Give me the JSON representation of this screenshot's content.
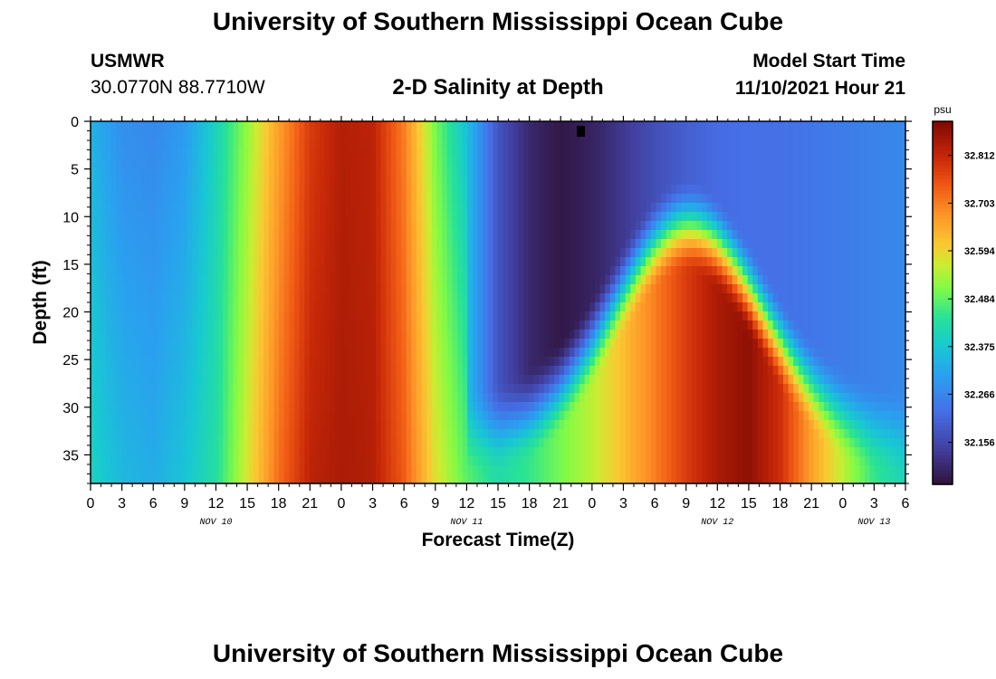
{
  "header": {
    "title": "University of Southern Mississippi Ocean Cube",
    "station": "USMWR",
    "coords": "30.0770N  88.7710W",
    "subtitle": "2-D Salinity at Depth",
    "start_label": "Model Start Time",
    "start_value": "11/10/2021 Hour 21"
  },
  "footer": {
    "title": "University of Southern Mississippi Ocean Cube"
  },
  "chart_data": {
    "type": "heatmap",
    "title": "2-D Salinity at Depth",
    "xlabel": "Forecast Time(Z)",
    "ylabel": "Depth (ft)",
    "x_unit": "hours from Nov 10 00Z",
    "xlim": [
      0,
      78
    ],
    "ylim": [
      0,
      38
    ],
    "y_inverted": true,
    "x_tick_labels": [
      "0",
      "3",
      "6",
      "9",
      "12",
      "15",
      "18",
      "21",
      "0",
      "3",
      "6",
      "9",
      "12",
      "15",
      "18",
      "21",
      "0",
      "3",
      "6",
      "9",
      "12",
      "15",
      "18",
      "21",
      "0",
      "3",
      "6"
    ],
    "x_tick_step_hours": 3,
    "date_labels": [
      {
        "label": "NOV 10",
        "hour": 12
      },
      {
        "label": "NOV 11",
        "hour": 36
      },
      {
        "label": "NOV 12",
        "hour": 60
      },
      {
        "label": "NOV 13",
        "hour": 75
      }
    ],
    "y_ticks": [
      0,
      5,
      10,
      15,
      20,
      25,
      30,
      35
    ],
    "colorbar": {
      "unit": "psu",
      "min": 32.06,
      "max": 32.89,
      "tick_values": [
        32.156,
        32.266,
        32.375,
        32.484,
        32.594,
        32.703,
        32.812
      ],
      "tick_labels": [
        "32.156",
        "32.266",
        "32.375",
        "32.484",
        "32.594",
        "32.703",
        "32.812"
      ],
      "colormap": "turbo-like"
    },
    "field_description": {
      "x_hours": [
        0,
        3,
        6,
        9,
        12,
        15,
        18,
        21,
        24,
        27,
        30,
        33,
        36,
        39,
        42,
        45,
        48,
        51,
        54,
        57,
        60,
        63,
        66,
        69,
        72,
        75,
        78
      ],
      "salinity_surface": [
        32.34,
        32.28,
        32.27,
        32.3,
        32.4,
        32.52,
        32.66,
        32.78,
        32.83,
        32.82,
        32.7,
        32.5,
        32.36,
        32.18,
        32.1,
        32.07,
        32.09,
        32.13,
        32.17,
        32.2,
        32.22,
        32.23,
        32.23,
        32.24,
        32.25,
        32.26,
        32.27
      ],
      "salinity_bottom": [
        32.4,
        32.35,
        32.33,
        32.37,
        32.43,
        32.57,
        32.72,
        32.82,
        32.84,
        32.83,
        32.74,
        32.58,
        32.48,
        32.42,
        32.45,
        32.5,
        32.55,
        32.62,
        32.7,
        32.78,
        32.84,
        32.87,
        32.8,
        32.66,
        32.55,
        32.45,
        32.4
      ]
    }
  }
}
